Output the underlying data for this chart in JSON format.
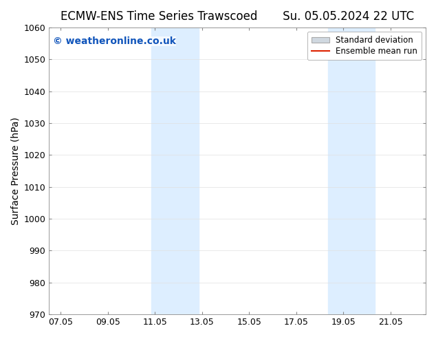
{
  "title": "ECMW-ENS Time Series Trawscoed       Su. 05.05.2024 22 UTC",
  "ylabel": "Surface Pressure (hPa)",
  "watermark": "© weatheronline.co.uk",
  "watermark_color": "#1155bb",
  "ylim": [
    970,
    1060
  ],
  "yticks": [
    970,
    980,
    990,
    1000,
    1010,
    1020,
    1030,
    1040,
    1050,
    1060
  ],
  "xtick_labels": [
    "07.05",
    "09.05",
    "11.05",
    "13.05",
    "15.05",
    "17.05",
    "19.05",
    "21.05"
  ],
  "xtick_positions": [
    0,
    2,
    4,
    6,
    8,
    10,
    12,
    14
  ],
  "xlim": [
    -0.5,
    15.5
  ],
  "shaded_bands": [
    {
      "x_start": 3.85,
      "x_end": 5.85
    },
    {
      "x_start": 11.35,
      "x_end": 13.35
    }
  ],
  "shade_color": "#ddeeff",
  "background_color": "#ffffff",
  "legend_std_color": "#d0d8e0",
  "legend_std_edge": "#aaaaaa",
  "legend_mean_color": "#dd2200",
  "title_fontsize": 12,
  "label_fontsize": 10,
  "tick_fontsize": 9,
  "watermark_fontsize": 10
}
